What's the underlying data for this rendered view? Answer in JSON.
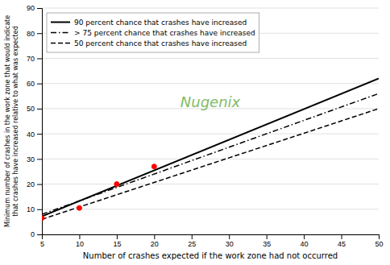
{
  "chart_data": {
    "type": "line",
    "xlabel": "Number of crashes expected if the work zone had not occurred",
    "ylabel": [
      "Minimum number of crashes in the work zone that would indicate",
      "that crashes have increased relative to what was expected"
    ],
    "xlim": [
      5,
      50
    ],
    "ylim": [
      0,
      90
    ],
    "xticks": [
      5,
      10,
      15,
      20,
      25,
      30,
      35,
      40,
      45,
      50
    ],
    "yticks": [
      0,
      10,
      20,
      30,
      40,
      50,
      60,
      70,
      80,
      90
    ],
    "grid": "y",
    "legend": "upper left",
    "annotations": [
      {
        "text": "Nugenix",
        "color": "#6ab04c"
      }
    ],
    "series": [
      {
        "name": "90 percent chance that crashes have increased",
        "x": [
          5,
          50
        ],
        "values": [
          7.2,
          62.0
        ],
        "color": "#000000",
        "line_style": "solid"
      },
      {
        "name": "> 75 percent chance that crashes have increased",
        "x": [
          5,
          50
        ],
        "values": [
          8.0,
          56.0
        ],
        "color": "#000000",
        "line_style": "dashdot"
      },
      {
        "name": "50 percent chance that crashes have increased",
        "x": [
          5,
          50
        ],
        "values": [
          6.0,
          50.0
        ],
        "color": "#000000",
        "line_style": "dashed"
      },
      {
        "type": "scatter",
        "marker": "circle",
        "x": [
          5,
          10,
          15,
          20
        ],
        "values": [
          6.5,
          10.5,
          20.0,
          27.0
        ],
        "color": "#ff0000"
      }
    ]
  }
}
